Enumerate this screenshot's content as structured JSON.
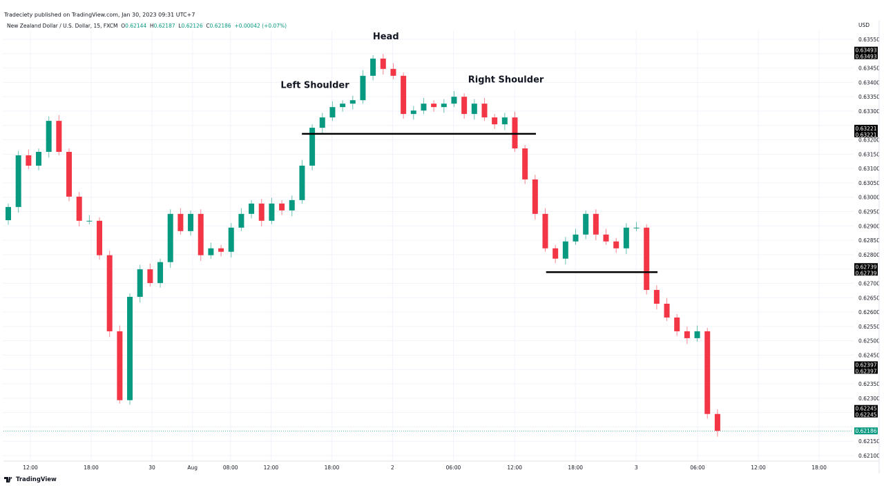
{
  "header": {
    "published": "Tradeciety published on TradingView.com, Jan 30, 2023 09:31 UTC+7",
    "symbol": "New Zealand Dollar / U.S. Dollar, 15, FXCM",
    "o_label": "O",
    "o": "0.62144",
    "h_label": "H",
    "h": "0.62187",
    "l_label": "L",
    "l": "0.62126",
    "c_label": "C",
    "c": "0.62186",
    "change": "+0.00042 (+0.07%)"
  },
  "footer": {
    "brand": "TradingView"
  },
  "colors": {
    "up": "#089981",
    "down": "#f23645",
    "grid": "#f0f3fa",
    "line": "#000000"
  },
  "chart_data": {
    "type": "candlestick",
    "currency": "USD",
    "interval_display": "hourly approximation of 15-minute bars",
    "ylim": [
      0.62075,
      0.6358
    ],
    "y_ticks": [
      "0.63550",
      "0.63450",
      "0.63400",
      "0.63350",
      "0.63300",
      "0.63200",
      "0.63150",
      "0.63100",
      "0.63050",
      "0.63000",
      "0.62950",
      "0.62900",
      "0.62850",
      "0.62800",
      "0.62700",
      "0.62650",
      "0.62600",
      "0.62550",
      "0.62500",
      "0.62450",
      "0.62350",
      "0.62300",
      "0.62150",
      "0.62100"
    ],
    "x_ticks": [
      {
        "label": "12:00",
        "hour": 0
      },
      {
        "label": "18:00",
        "hour": 6
      },
      {
        "label": "30",
        "hour": 12
      },
      {
        "label": "Aug",
        "hour": 16
      },
      {
        "label": "08:00",
        "hour": 19.75
      },
      {
        "label": "12:00",
        "hour": 23.75
      },
      {
        "label": "18:00",
        "hour": 29.75
      },
      {
        "label": "2",
        "hour": 35.75
      },
      {
        "label": "06:00",
        "hour": 41.75
      },
      {
        "label": "12:00",
        "hour": 47.8
      },
      {
        "label": "18:00",
        "hour": 53.8
      },
      {
        "label": "3",
        "hour": 59.8
      },
      {
        "label": "06:00",
        "hour": 65.85
      },
      {
        "label": "12:00",
        "hour": 71.85
      },
      {
        "label": "18:00",
        "hour": 77.85
      }
    ],
    "first_open": 0.6292,
    "closes": [
      0.62966,
      0.63146,
      0.6311,
      0.63158,
      0.63266,
      0.63158,
      0.63002,
      0.62918,
      0.62918,
      0.62798,
      0.62533,
      0.62293,
      0.62653,
      0.62749,
      0.62701,
      0.62774,
      0.62942,
      0.62882,
      0.62942,
      0.62798,
      0.62822,
      0.6281,
      0.62894,
      0.62942,
      0.62978,
      0.62918,
      0.62978,
      0.62954,
      0.6299,
      0.6311,
      0.63242,
      0.63278,
      0.63314,
      0.63326,
      0.63338,
      0.63423,
      0.63483,
      0.63447,
      0.63423,
      0.6329,
      0.63302,
      0.63326,
      0.63314,
      0.63326,
      0.6335,
      0.6329,
      0.63326,
      0.63278,
      0.63254,
      0.63278,
      0.6317,
      0.63062,
      0.62942,
      0.62822,
      0.62786,
      0.62846,
      0.6287,
      0.62942,
      0.6287,
      0.62846,
      0.62822,
      0.62894,
      0.62894,
      0.62677,
      0.62629,
      0.62581,
      0.62533,
      0.62509,
      0.62533,
      0.62245,
      0.62186
    ],
    "annotations": [
      {
        "text": "Left Shoulder",
        "price": 0.6338,
        "hour": 24.7
      },
      {
        "text": "Head",
        "price": 0.6355,
        "hour": 33.8
      },
      {
        "text": "Right Shoulder",
        "price": 0.634,
        "hour": 43.2
      }
    ],
    "neckline_lines": [
      {
        "name": "neckline-upper",
        "price": 0.63221,
        "from_hour": 26.8,
        "to_hour": 49.9
      },
      {
        "name": "neckline-lower",
        "price": 0.62739,
        "from_hour": 50.9,
        "to_hour": 61.9
      }
    ],
    "price_labels": [
      {
        "value": "0.63493",
        "style": "black"
      },
      {
        "value": "0.63221",
        "style": "black"
      },
      {
        "value": "0.62739",
        "style": "black"
      },
      {
        "value": "0.62397",
        "style": "black"
      },
      {
        "value": "0.62245",
        "style": "black"
      },
      {
        "value": "0.62186",
        "style": "current"
      }
    ]
  }
}
